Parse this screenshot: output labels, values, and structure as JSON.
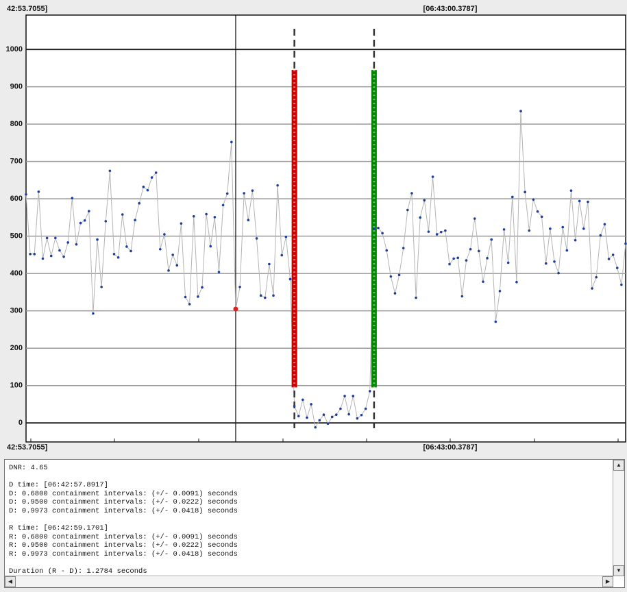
{
  "chart_data": {
    "type": "line",
    "top_labels": [
      "42:53.7055]",
      "[06:43:00.3787]"
    ],
    "bottom_labels": [
      "42:53.7055]",
      "[06:43:00.3787]"
    ],
    "values": [
      612,
      452,
      452,
      619,
      440,
      495,
      447,
      495,
      462,
      445,
      483,
      602,
      478,
      535,
      542,
      567,
      293,
      491,
      364,
      540,
      675,
      452,
      443,
      558,
      472,
      460,
      543,
      588,
      632,
      623,
      657,
      670,
      465,
      505,
      408,
      450,
      422,
      534,
      337,
      318,
      553,
      338,
      363,
      559,
      473,
      551,
      404,
      583,
      614,
      752,
      305,
      364,
      615,
      543,
      622,
      494,
      341,
      335,
      425,
      341,
      636,
      449,
      498,
      385,
      45,
      18,
      62,
      14,
      50,
      -12,
      7,
      22,
      -2,
      16,
      22,
      38,
      72,
      23,
      72,
      12,
      21,
      38,
      85,
      520,
      522,
      508,
      462,
      392,
      347,
      396,
      468,
      570,
      615,
      335,
      550,
      596,
      512,
      659,
      505,
      511,
      515,
      425,
      440,
      442,
      339,
      435,
      465,
      547,
      460,
      378,
      441,
      491,
      271,
      353,
      518,
      429,
      605,
      377,
      835,
      618,
      515,
      598,
      566,
      552,
      427,
      520,
      432,
      401,
      524,
      462,
      622,
      489,
      594,
      520,
      592,
      360,
      390,
      502,
      532,
      439,
      450,
      415,
      370,
      480
    ],
    "color": "#1c3ea0",
    "line_color": "#b4b4b4",
    "cursor_index": 50,
    "cursor_color": "#e02020",
    "d_marker": {
      "index": 64,
      "range": [
        95,
        945
      ],
      "color": "#cc0000"
    },
    "r_marker": {
      "index": 83,
      "range": [
        95,
        945
      ],
      "color": "#008800"
    },
    "ylim": [
      -51,
      1092
    ],
    "yticks": [
      0,
      100,
      200,
      300,
      400,
      500,
      600,
      700,
      800,
      900,
      1000
    ],
    "grid": true
  },
  "log": {
    "blocks": [
      [
        "DNR: 4.65"
      ],
      [
        "D time: [06:42:57.8917]",
        "D: 0.6800 containment intervals: (+/- 0.0091) seconds",
        "D: 0.9500 containment intervals: (+/- 0.0222) seconds",
        "D: 0.9973 containment intervals: (+/- 0.0418) seconds"
      ],
      [
        "R time: [06:42:59.1701]",
        "R: 0.6800 containment intervals: (+/- 0.0091) seconds",
        "R: 0.9500 containment intervals: (+/- 0.0222) seconds",
        "R: 0.9973 containment intervals: (+/- 0.0418) seconds"
      ],
      [
        "Duration (R - D): 1.2784 seconds"
      ]
    ]
  }
}
